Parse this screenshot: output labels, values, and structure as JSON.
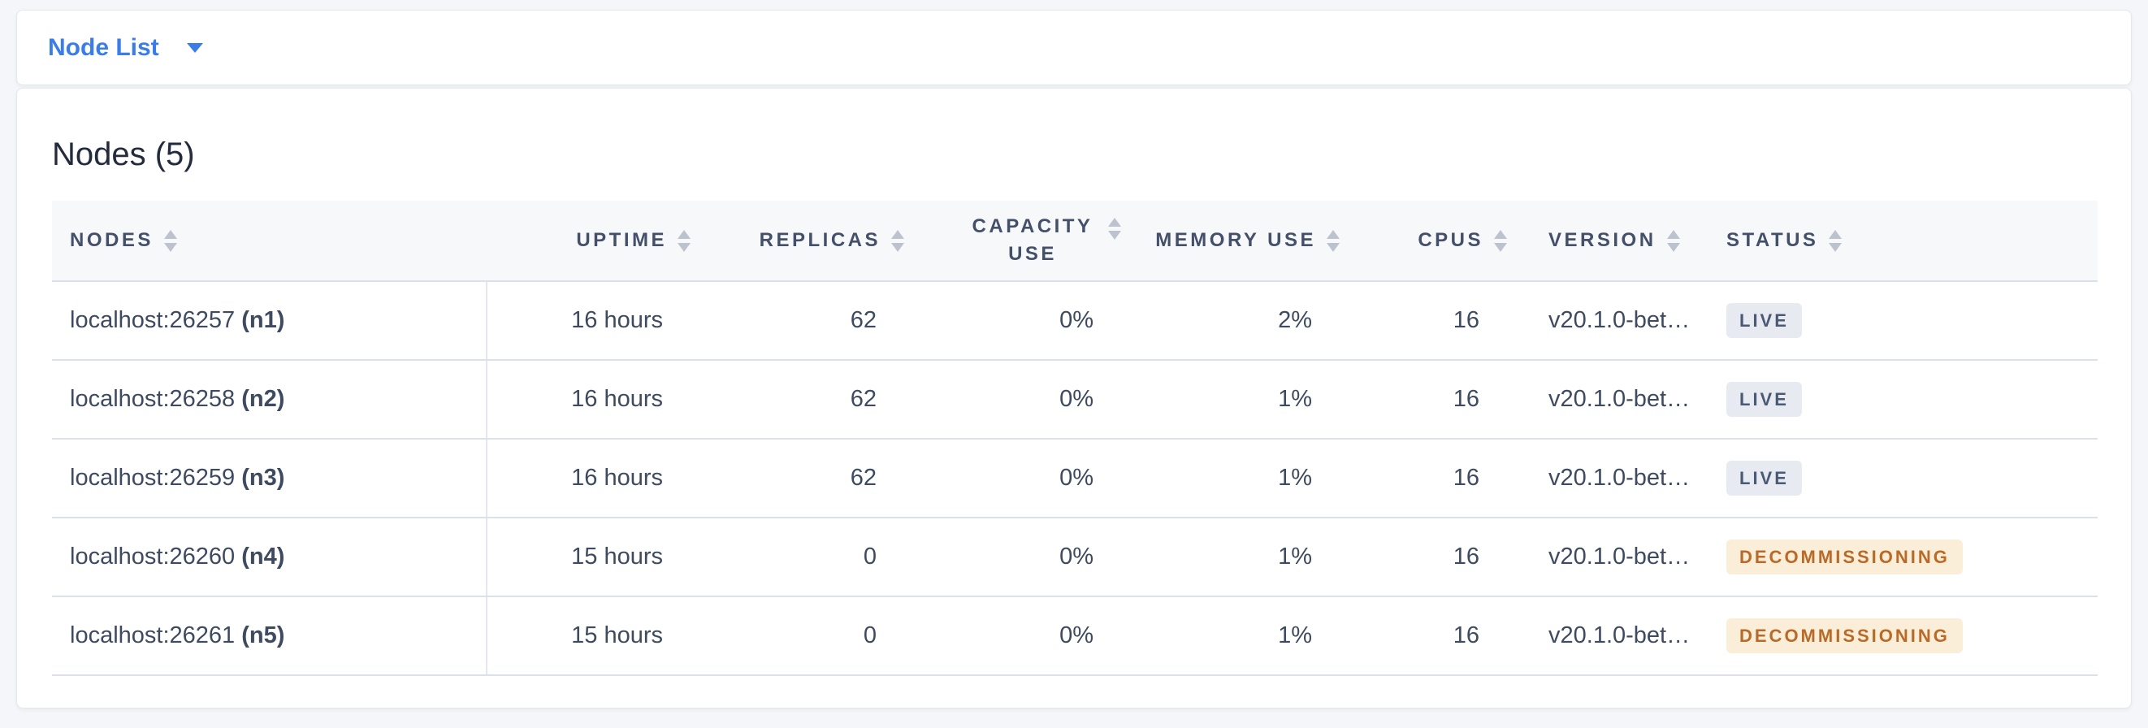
{
  "toolbar": {
    "dropdown_label": "Node List"
  },
  "main": {
    "title": "Nodes (5)"
  },
  "table": {
    "columns": [
      {
        "key": "nodes",
        "label": "NODES",
        "align": "left",
        "sortable": true,
        "wrap": false
      },
      {
        "key": "uptime",
        "label": "UPTIME",
        "align": "right",
        "sortable": true,
        "wrap": false
      },
      {
        "key": "replicas",
        "label": "REPLICAS",
        "align": "right",
        "sortable": true,
        "wrap": false
      },
      {
        "key": "capacity",
        "label": "CAPACITY USE",
        "align": "right",
        "sortable": true,
        "wrap": true
      },
      {
        "key": "memory",
        "label": "MEMORY USE",
        "align": "right",
        "sortable": true,
        "wrap": false
      },
      {
        "key": "cpus",
        "label": "CPUS",
        "align": "right",
        "sortable": true,
        "wrap": false
      },
      {
        "key": "version",
        "label": "VERSION",
        "align": "left",
        "sortable": true,
        "wrap": false
      },
      {
        "key": "status",
        "label": "STATUS",
        "align": "left",
        "sortable": true,
        "wrap": false
      }
    ],
    "rows": [
      {
        "address": "localhost:26257",
        "name": "(n1)",
        "uptime": "16 hours",
        "replicas": "62",
        "capacity": "0%",
        "memory": "2%",
        "cpus": "16",
        "version": "v20.1.0-bet…",
        "status": "LIVE",
        "status_kind": "live"
      },
      {
        "address": "localhost:26258",
        "name": "(n2)",
        "uptime": "16 hours",
        "replicas": "62",
        "capacity": "0%",
        "memory": "1%",
        "cpus": "16",
        "version": "v20.1.0-bet…",
        "status": "LIVE",
        "status_kind": "live"
      },
      {
        "address": "localhost:26259",
        "name": "(n3)",
        "uptime": "16 hours",
        "replicas": "62",
        "capacity": "0%",
        "memory": "1%",
        "cpus": "16",
        "version": "v20.1.0-bet…",
        "status": "LIVE",
        "status_kind": "live"
      },
      {
        "address": "localhost:26260",
        "name": "(n4)",
        "uptime": "15 hours",
        "replicas": "0",
        "capacity": "0%",
        "memory": "1%",
        "cpus": "16",
        "version": "v20.1.0-bet…",
        "status": "DECOMMISSIONING",
        "status_kind": "decommissioning"
      },
      {
        "address": "localhost:26261",
        "name": "(n5)",
        "uptime": "15 hours",
        "replicas": "0",
        "capacity": "0%",
        "memory": "1%",
        "cpus": "16",
        "version": "v20.1.0-bet…",
        "status": "DECOMMISSIONING",
        "status_kind": "decommissioning"
      }
    ]
  },
  "colors": {
    "accent_blue": "#3b7de8",
    "page_background": "#f4f6f9",
    "header_text": "#44506a",
    "cell_text": "#3e4a5f",
    "live_badge_bg": "#e7eaf0",
    "live_badge_text": "#4a5a76",
    "decommissioning_badge_bg": "#fbeed8",
    "decommissioning_badge_text": "#b96a28"
  }
}
